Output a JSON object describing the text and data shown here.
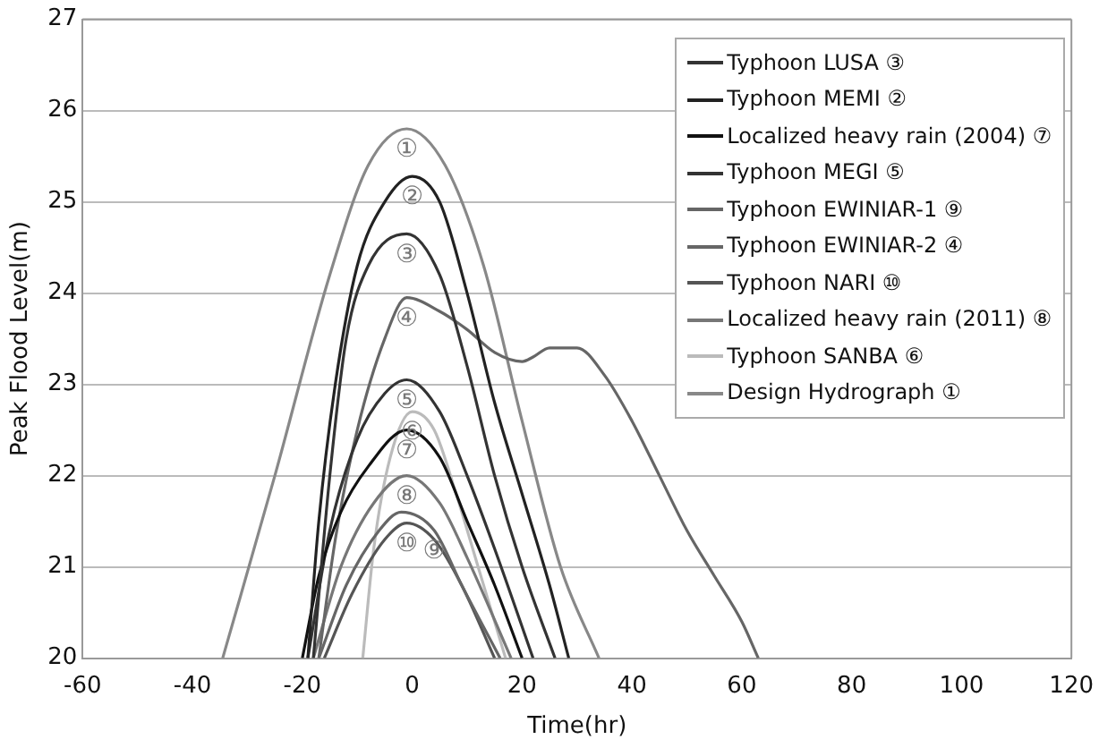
{
  "chart_data": {
    "type": "line",
    "xlabel": "Time(hr)",
    "ylabel": "Peak Flood Level(m)",
    "xlim": [
      -60,
      120
    ],
    "xticks": [
      -60,
      -40,
      -20,
      0,
      20,
      40,
      60,
      80,
      100,
      120
    ],
    "ylim": [
      20,
      27
    ],
    "yticks": [
      20,
      21,
      22,
      23,
      24,
      25,
      26,
      27
    ],
    "grid": "y",
    "legend": "top right",
    "marker": "none",
    "line_style": "solid",
    "series": [
      {
        "name": "Typhoon LUSA ③",
        "color": "#333333",
        "x": [
          -18,
          -15,
          -12,
          -8,
          -1,
          5,
          10,
          15,
          20,
          26
        ],
        "values": [
          20,
          22,
          23.5,
          24.3,
          24.65,
          24.2,
          23.2,
          22,
          21,
          20
        ]
      },
      {
        "name": "Typhoon MEMI ②",
        "color": "#222222",
        "x": [
          -19,
          -17,
          -14,
          -10,
          -5,
          0,
          5,
          10,
          15,
          20,
          25,
          28.5
        ],
        "values": [
          20,
          21.5,
          23,
          24.3,
          25,
          25.28,
          25,
          24,
          22.8,
          21.8,
          20.8,
          20
        ]
      },
      {
        "name": "Localized heavy rain (2004) ⑦",
        "color": "#111111",
        "x": [
          -20,
          -17,
          -13,
          -8,
          -1,
          5,
          10,
          15,
          20
        ],
        "values": [
          20,
          20.9,
          21.6,
          22.1,
          22.5,
          22.2,
          21.5,
          20.8,
          20
        ]
      },
      {
        "name": "Typhoon MEGI ⑤",
        "color": "#333333",
        "x": [
          -19,
          -15,
          -10,
          -5,
          -1,
          5,
          10,
          15,
          22
        ],
        "values": [
          20,
          21.4,
          22.4,
          22.9,
          23.05,
          22.7,
          22,
          21.2,
          20
        ]
      },
      {
        "name": "Typhoon EWINIAR-1 ⑨",
        "color": "#666666",
        "x": [
          -17,
          -12,
          -6,
          -2,
          4,
          9,
          16
        ],
        "values": [
          20,
          20.8,
          21.4,
          21.6,
          21.4,
          20.8,
          20
        ]
      },
      {
        "name": "Typhoon EWINIAR-2 ④",
        "color": "#666666",
        "x": [
          -17,
          -14,
          -10,
          -5,
          -1,
          5,
          10,
          15,
          20,
          22,
          25,
          30,
          35,
          40,
          45,
          50,
          55,
          60,
          63
        ],
        "values": [
          20,
          21.3,
          22.5,
          23.5,
          23.95,
          23.8,
          23.6,
          23.35,
          23.25,
          23.3,
          23.4,
          23.4,
          23.1,
          22.6,
          22,
          21.4,
          20.9,
          20.4,
          20
        ]
      },
      {
        "name": "Typhoon NARI ⑩",
        "color": "#555555",
        "x": [
          -16,
          -11,
          -5,
          -1,
          4,
          9,
          15
        ],
        "values": [
          20,
          20.7,
          21.3,
          21.48,
          21.3,
          20.8,
          20
        ]
      },
      {
        "name": "Localized heavy rain (2011) ⑧",
        "color": "#777777",
        "x": [
          -18,
          -13,
          -7,
          -1,
          5,
          10,
          18
        ],
        "values": [
          20,
          21,
          21.7,
          22,
          21.7,
          21.1,
          20
        ]
      },
      {
        "name": "Typhoon SANBA ⑥",
        "color": "#bbbbbb",
        "x": [
          -9,
          -7,
          -4,
          0,
          4,
          8,
          12,
          17
        ],
        "values": [
          20,
          21.2,
          22.2,
          22.7,
          22.5,
          21.8,
          21,
          20
        ]
      },
      {
        "name": "Design Hydrograph ①",
        "color": "#888888",
        "x": [
          -34.5,
          -25,
          -15,
          -8,
          -1,
          6,
          13,
          20,
          27,
          34
        ],
        "values": [
          20,
          22,
          24.2,
          25.4,
          25.8,
          25.4,
          24.3,
          22.6,
          21,
          20
        ]
      }
    ],
    "annotations": [
      {
        "text": "①",
        "x": -1,
        "y": 25.8
      },
      {
        "text": "②",
        "x": 0,
        "y": 25.28
      },
      {
        "text": "③",
        "x": -1,
        "y": 24.65
      },
      {
        "text": "④",
        "x": -1,
        "y": 23.95
      },
      {
        "text": "⑤",
        "x": -1,
        "y": 23.05
      },
      {
        "text": "⑥",
        "x": 0,
        "y": 22.7
      },
      {
        "text": "⑦",
        "x": -1,
        "y": 22.5
      },
      {
        "text": "⑧",
        "x": -1,
        "y": 22
      },
      {
        "text": "⑨",
        "x": 4,
        "y": 21.4
      },
      {
        "text": "⑩",
        "x": -1,
        "y": 21.48
      }
    ]
  }
}
